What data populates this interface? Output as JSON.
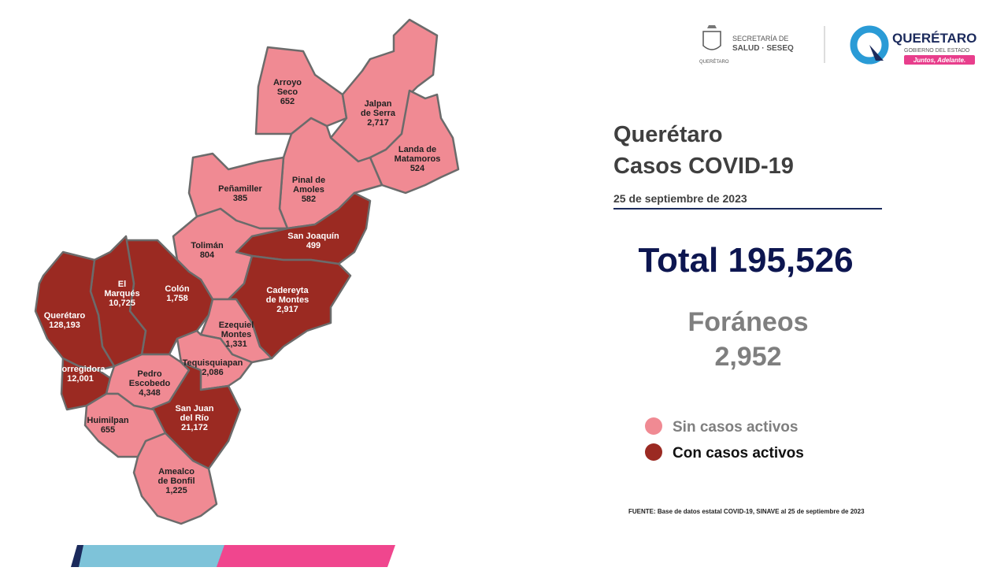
{
  "header": {
    "ssa_line1": "SECRETARÍA DE",
    "ssa_line2": "SALUD · SESEQ",
    "ssa_state": "QUERÉTARO",
    "gov_name": "QUERÉTARO",
    "gov_sub": "GOBIERNO DEL ESTADO",
    "gov_slogan": "Juntos, Adelante."
  },
  "title_lines": [
    "Querétaro",
    "Casos COVID-19"
  ],
  "date": "25 de septiembre de 2023",
  "total_label": "Total 195,526",
  "foraneos_label": "Foráneos",
  "foraneos_value": "2,952",
  "legend": [
    {
      "label": "Sin casos activos",
      "color": "#f08a93"
    },
    {
      "label": "Con casos activos",
      "color": "#9b2a22"
    }
  ],
  "source": "FUENTE: Base de datos estatal COVID-19, SINAVE  al 25 de septiembre de 2023",
  "municipalities": [
    {
      "label_lines": [
        "Arroyo",
        "Seco"
      ],
      "cases": "652",
      "active": false
    },
    {
      "label_lines": [
        "Jalpan",
        "de Serra"
      ],
      "cases": "2,717",
      "active": false
    },
    {
      "label_lines": [
        "Landa de",
        "Matamoros"
      ],
      "cases": "524",
      "active": false
    },
    {
      "label_lines": [
        "Pinal de",
        "Amoles"
      ],
      "cases": "582",
      "active": false
    },
    {
      "label_lines": [
        "Peñamiller"
      ],
      "cases": "385",
      "active": false
    },
    {
      "label_lines": [
        "San Joaquín"
      ],
      "cases": "499",
      "active": true
    },
    {
      "label_lines": [
        "Tolimán"
      ],
      "cases": "804",
      "active": false
    },
    {
      "label_lines": [
        "Cadereyta",
        "de Montes"
      ],
      "cases": "2,917",
      "active": true
    },
    {
      "label_lines": [
        "Colón"
      ],
      "cases": "1,758",
      "active": true
    },
    {
      "label_lines": [
        "El",
        "Marqués"
      ],
      "cases": "10,725",
      "active": true
    },
    {
      "label_lines": [
        "Querétaro"
      ],
      "cases": "128,193",
      "active": true
    },
    {
      "label_lines": [
        "Corregidora"
      ],
      "cases": "12,001",
      "active": true
    },
    {
      "label_lines": [
        "Ezequiel",
        "Montes"
      ],
      "cases": "1,331",
      "active": false
    },
    {
      "label_lines": [
        "Tequisquiapan"
      ],
      "cases": "2,086",
      "active": false
    },
    {
      "label_lines": [
        "Pedro",
        "Escobedo"
      ],
      "cases": "4,348",
      "active": false
    },
    {
      "label_lines": [
        "San Juan",
        "del Río"
      ],
      "cases": "21,172",
      "active": true
    },
    {
      "label_lines": [
        "Huimilpan"
      ],
      "cases": "655",
      "active": false
    },
    {
      "label_lines": [
        "Amealco",
        "de Bonfil"
      ],
      "cases": "1,225",
      "active": false
    }
  ]
}
